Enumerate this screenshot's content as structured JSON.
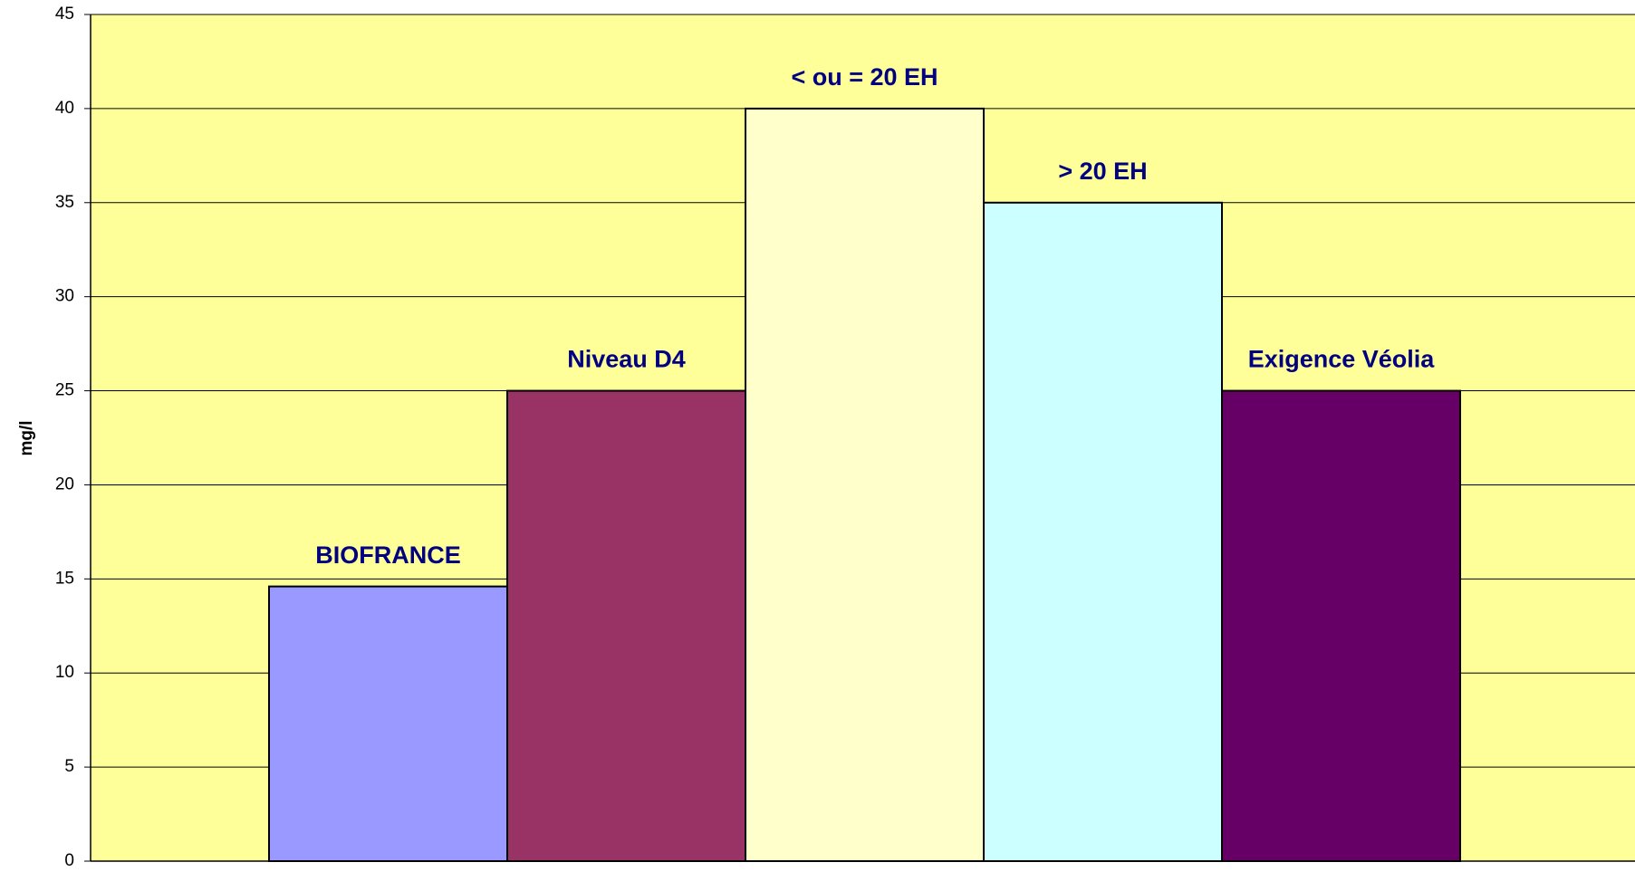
{
  "chart_data": {
    "type": "bar",
    "y_label": "mg/l",
    "categories": [
      "BIOFRANCE",
      "Niveau D4",
      "< ou = 20 EH",
      "> 20 EH",
      "Exigence Véolia"
    ],
    "values": [
      14.6,
      25,
      40,
      35,
      25
    ],
    "colors": [
      "#9999ff",
      "#993366",
      "#ffffcc",
      "#ccffff",
      "#660066"
    ],
    "ylim": [
      0,
      45
    ],
    "yticks": [
      0,
      5,
      10,
      15,
      20,
      25,
      30,
      35,
      40,
      45
    ],
    "grid": true
  }
}
